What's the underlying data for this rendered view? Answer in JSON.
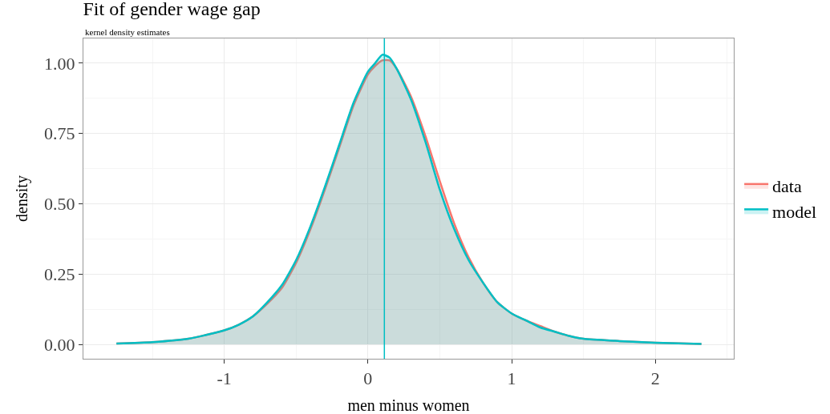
{
  "chart_data": {
    "type": "area",
    "title": "Fit of gender wage gap",
    "subtitle": "kernel density estimates",
    "xlabel": "men minus women",
    "ylabel": "density",
    "xlim": [
      -1.98,
      2.545
    ],
    "xticks": [
      -1,
      0,
      1,
      2
    ],
    "ylim": [
      -0.051,
      1.088
    ],
    "yticks": [
      {
        "value": 0,
        "label": "0.00"
      },
      {
        "value": 0.25,
        "label": "0.25"
      },
      {
        "value": 0.5,
        "label": "0.50"
      },
      {
        "value": 0.75,
        "label": "0.75"
      },
      {
        "value": 1,
        "label": "1.00"
      }
    ],
    "grid": true,
    "legend": "right",
    "x": [
      -1.75,
      -1.5,
      -1.25,
      -1,
      -0.9,
      -0.8,
      -0.7,
      -0.6,
      -0.5,
      -0.4,
      -0.3,
      -0.2,
      -0.1,
      0,
      0.05,
      0.1,
      0.15,
      0.2,
      0.3,
      0.4,
      0.5,
      0.6,
      0.7,
      0.8,
      0.9,
      1,
      1.1,
      1.2,
      1.3,
      1.4,
      1.5,
      1.75,
      2,
      2.32
    ],
    "series": [
      {
        "name": "data",
        "color": "#f8766d",
        "values": [
          0.003,
          0.008,
          0.02,
          0.05,
          0.07,
          0.1,
          0.145,
          0.2,
          0.29,
          0.41,
          0.55,
          0.7,
          0.85,
          0.96,
          0.99,
          1.01,
          1.01,
          0.98,
          0.88,
          0.74,
          0.58,
          0.43,
          0.31,
          0.22,
          0.15,
          0.11,
          0.085,
          0.065,
          0.045,
          0.03,
          0.02,
          0.012,
          0.006,
          0.002
        ]
      },
      {
        "name": "model",
        "color": "#00bfc4",
        "values": [
          0.003,
          0.008,
          0.02,
          0.05,
          0.07,
          0.1,
          0.15,
          0.21,
          0.3,
          0.42,
          0.56,
          0.71,
          0.86,
          0.97,
          1.0,
          1.03,
          1.02,
          0.98,
          0.87,
          0.72,
          0.55,
          0.41,
          0.3,
          0.22,
          0.15,
          0.11,
          0.085,
          0.06,
          0.045,
          0.03,
          0.02,
          0.012,
          0.006,
          0.002
        ]
      }
    ],
    "ref_lines": [
      {
        "axis": "x",
        "value": 0.114,
        "color": "#00bfc4"
      }
    ]
  }
}
